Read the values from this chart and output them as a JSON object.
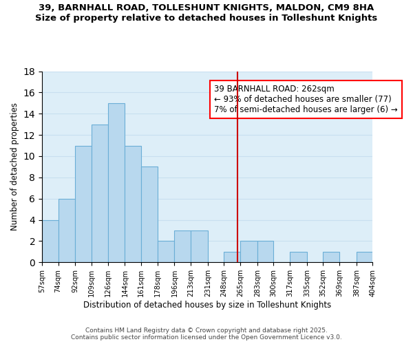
{
  "title_line1": "39, BARNHALL ROAD, TOLLESHUNT KNIGHTS, MALDON, CM9 8HA",
  "title_line2": "Size of property relative to detached houses in Tolleshunt Knights",
  "xlabel": "Distribution of detached houses by size in Tolleshunt Knights",
  "ylabel": "Number of detached properties",
  "bin_edges": [
    57,
    74,
    92,
    109,
    126,
    144,
    161,
    178,
    196,
    213,
    231,
    248,
    265,
    283,
    300,
    317,
    335,
    352,
    369,
    387,
    404
  ],
  "bar_heights": [
    4,
    6,
    11,
    13,
    15,
    11,
    9,
    2,
    3,
    3,
    0,
    1,
    2,
    2,
    0,
    1,
    0,
    1,
    0,
    1
  ],
  "bar_color": "#b8d8ee",
  "bar_edge_color": "#6aaed6",
  "grid_color": "#c8dff0",
  "reference_line_x": 262,
  "reference_line_color": "#cc0000",
  "annotation_text_line1": "39 BARNHALL ROAD: 262sqm",
  "annotation_text_line2": "← 93% of detached houses are smaller (77)",
  "annotation_text_line3": "7% of semi-detached houses are larger (6) →",
  "annotation_fontsize": 8.5,
  "ylim": [
    0,
    18
  ],
  "yticks": [
    0,
    2,
    4,
    6,
    8,
    10,
    12,
    14,
    16,
    18
  ],
  "tick_labels": [
    "57sqm",
    "74sqm",
    "92sqm",
    "109sqm",
    "126sqm",
    "144sqm",
    "161sqm",
    "178sqm",
    "196sqm",
    "213sqm",
    "231sqm",
    "248sqm",
    "265sqm",
    "283sqm",
    "300sqm",
    "317sqm",
    "335sqm",
    "352sqm",
    "369sqm",
    "387sqm",
    "404sqm"
  ],
  "footnote1": "Contains HM Land Registry data © Crown copyright and database right 2025.",
  "footnote2": "Contains public sector information licensed under the Open Government Licence v3.0.",
  "bg_color": "#ffffff",
  "plot_bg_color": "#ddeef8"
}
